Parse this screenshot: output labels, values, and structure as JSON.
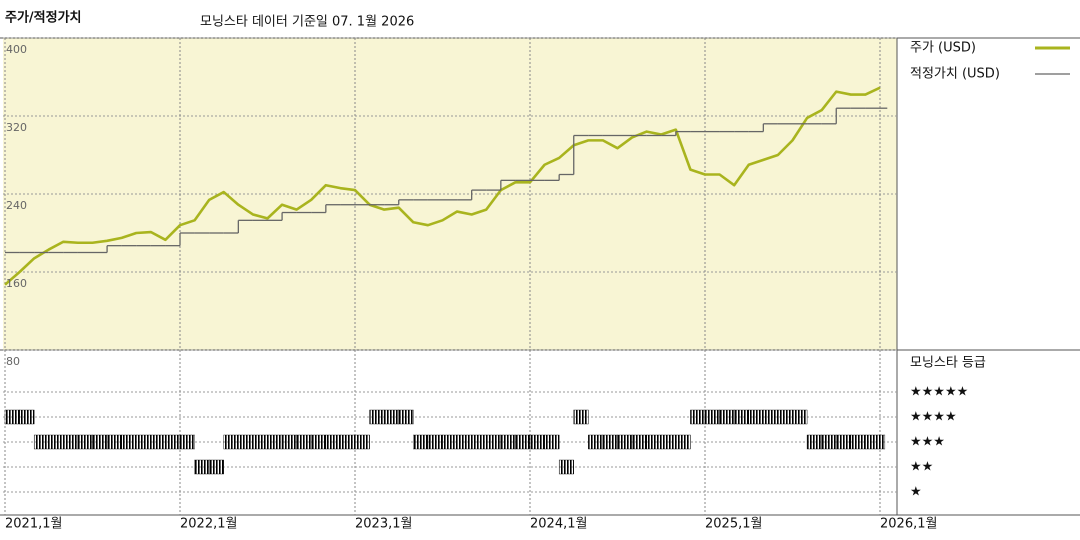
{
  "chart_data": {
    "type": "line",
    "title": "주가/적정가치",
    "subtitle": "모닝스타 데이터 기준일 07. 1월 2026",
    "x": [
      "2021-01",
      "2021-02",
      "2021-03",
      "2021-04",
      "2021-05",
      "2021-06",
      "2021-07",
      "2021-08",
      "2021-09",
      "2021-10",
      "2021-11",
      "2021-12",
      "2022-01",
      "2022-02",
      "2022-03",
      "2022-04",
      "2022-05",
      "2022-06",
      "2022-07",
      "2022-08",
      "2022-09",
      "2022-10",
      "2022-11",
      "2022-12",
      "2023-01",
      "2023-02",
      "2023-03",
      "2023-04",
      "2023-05",
      "2023-06",
      "2023-07",
      "2023-08",
      "2023-09",
      "2023-10",
      "2023-11",
      "2023-12",
      "2024-01",
      "2024-02",
      "2024-03",
      "2024-04",
      "2024-05",
      "2024-06",
      "2024-07",
      "2024-08",
      "2024-09",
      "2024-10",
      "2024-11",
      "2024-12",
      "2025-01",
      "2025-02",
      "2025-03",
      "2025-04",
      "2025-05",
      "2025-06",
      "2025-07",
      "2025-08",
      "2025-09",
      "2025-10",
      "2025-11",
      "2025-12",
      "2026-01"
    ],
    "series": [
      {
        "name": "주가 (USD)",
        "color": "#a9b41e",
        "values": [
          147,
          160,
          174,
          183,
          191,
          190,
          190,
          192,
          195,
          200,
          201,
          193,
          208,
          213,
          234,
          242,
          229,
          219,
          215,
          229,
          224,
          234,
          249,
          246,
          244,
          229,
          224,
          226,
          211,
          208,
          213,
          222,
          219,
          224,
          244,
          252,
          252,
          270,
          277,
          290,
          295,
          295,
          287,
          298,
          304,
          301,
          306,
          265,
          260,
          260,
          249,
          270,
          275,
          280,
          295,
          318,
          326,
          345,
          342,
          342,
          349
        ]
      },
      {
        "name": "적정가치 (USD)",
        "color": "#666666",
        "step": true,
        "values": [
          180,
          180,
          180,
          180,
          180,
          180,
          180,
          187,
          187,
          187,
          187,
          187,
          200,
          200,
          200,
          200,
          213,
          213,
          213,
          221,
          221,
          221,
          229,
          229,
          229,
          229,
          229,
          234,
          234,
          234,
          234,
          234,
          244,
          244,
          254,
          254,
          254,
          254,
          260,
          300,
          300,
          300,
          300,
          300,
          300,
          300,
          304,
          304,
          304,
          304,
          304,
          304,
          312,
          312,
          312,
          312,
          312,
          328,
          328,
          328,
          328
        ]
      }
    ],
    "xlim": [
      "2021-01",
      "2026-01"
    ],
    "xticks": [
      {
        "value": "2021-01",
        "label": "2021,1월"
      },
      {
        "value": "2022-01",
        "label": "2022,1월"
      },
      {
        "value": "2023-01",
        "label": "2023,1월"
      },
      {
        "value": "2024-01",
        "label": "2024,1월"
      },
      {
        "value": "2025-01",
        "label": "2025,1월"
      },
      {
        "value": "2026-01",
        "label": "2026,1월"
      }
    ],
    "ylim": [
      80,
      400
    ],
    "yticks": [
      80,
      160,
      240,
      320,
      400
    ],
    "grid": true,
    "rating_panel": {
      "title": "모닝스타 등급",
      "color": "#000000",
      "ticks": [
        {
          "value": 5,
          "label": "★★★★★"
        },
        {
          "value": 4,
          "label": "★★★★"
        },
        {
          "value": 3,
          "label": "★★★"
        },
        {
          "value": 2,
          "label": "★★"
        },
        {
          "value": 1,
          "label": "★"
        }
      ],
      "ratings": [
        4,
        4,
        3,
        3,
        3,
        3,
        3,
        3,
        3,
        3,
        3,
        3,
        3,
        2,
        2,
        3,
        3,
        3,
        3,
        3,
        3,
        3,
        3,
        3,
        3,
        4,
        4,
        4,
        3,
        3,
        3,
        3,
        3,
        3,
        3,
        3,
        3,
        3,
        2,
        4,
        3,
        3,
        3,
        3,
        3,
        3,
        3,
        4,
        4,
        4,
        4,
        4,
        4,
        4,
        4,
        3,
        3,
        3,
        3,
        3,
        3
      ]
    }
  }
}
